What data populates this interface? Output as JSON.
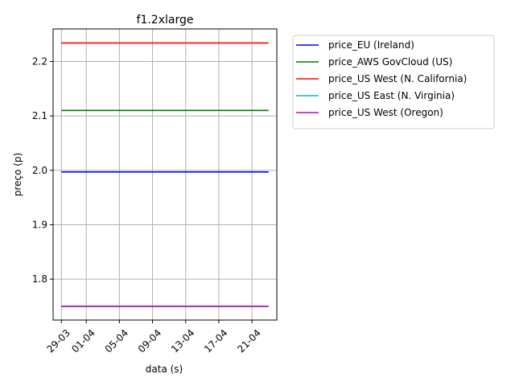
{
  "chart_data": {
    "type": "line",
    "title": "f1.2xlarge",
    "xlabel": "data (s)",
    "ylabel": "preço (p)",
    "x": [
      "2017-03-29",
      "2017-04-23"
    ],
    "xlim": [
      "2017-03-28",
      "2017-04-24"
    ],
    "ylim": [
      1.7248,
      2.2598
    ],
    "xticks": [
      {
        "date": "2017-03-29",
        "label": "29-03"
      },
      {
        "date": "2017-04-01",
        "label": "01-04"
      },
      {
        "date": "2017-04-05",
        "label": "05-04"
      },
      {
        "date": "2017-04-09",
        "label": "09-04"
      },
      {
        "date": "2017-04-13",
        "label": "13-04"
      },
      {
        "date": "2017-04-17",
        "label": "17-04"
      },
      {
        "date": "2017-04-21",
        "label": "21-04"
      }
    ],
    "yticks": [
      {
        "value": 1.8,
        "label": "1.8"
      },
      {
        "value": 1.9,
        "label": "1.9"
      },
      {
        "value": 2.0,
        "label": "2.0"
      },
      {
        "value": 2.1,
        "label": "2.1"
      },
      {
        "value": 2.2,
        "label": "2.2"
      }
    ],
    "grid": true,
    "legend_placement": "outside-right-top",
    "series": [
      {
        "name": "price_EU (Ireland)",
        "color": "#0000ff",
        "values": [
          1.997,
          1.997
        ]
      },
      {
        "name": "price_AWS GovCloud (US)",
        "color": "#008000",
        "values": [
          2.11,
          2.11
        ]
      },
      {
        "name": "price_US West (N. California)",
        "color": "#ff0000",
        "values": [
          2.234,
          2.234
        ]
      },
      {
        "name": "price_US East (N. Virginia)",
        "color": "#00bfbf",
        "values": [
          1.75,
          1.75
        ]
      },
      {
        "name": "price_US West (Oregon)",
        "color": "#bf00bf",
        "values": [
          1.75,
          1.75
        ]
      }
    ]
  }
}
